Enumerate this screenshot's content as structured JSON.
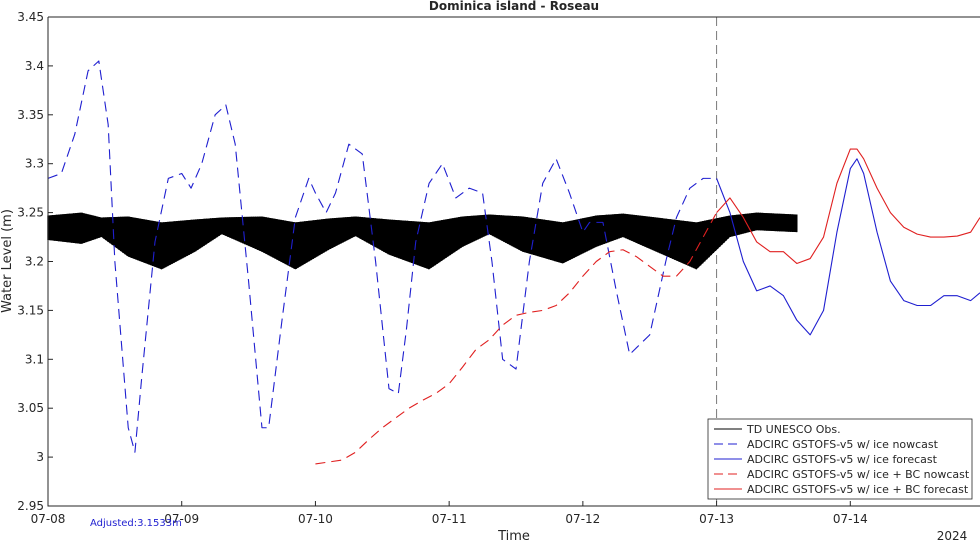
{
  "chart_data": {
    "type": "line",
    "title": "Dominica island - Roseau",
    "xlabel": "Time",
    "ylabel": "Water Level (m)",
    "year_label": "2024",
    "adjusted_label": "Adjusted:3.1533m",
    "xlim": [
      0,
      6.97
    ],
    "ylim": [
      2.95,
      3.45
    ],
    "x_ticks": [
      {
        "x": 0,
        "label": "07-08"
      },
      {
        "x": 1,
        "label": "07-09"
      },
      {
        "x": 2,
        "label": "07-10"
      },
      {
        "x": 3,
        "label": "07-11"
      },
      {
        "x": 4,
        "label": "07-12"
      },
      {
        "x": 5,
        "label": "07-13"
      },
      {
        "x": 6,
        "label": "07-14"
      }
    ],
    "y_ticks": [
      2.95,
      3,
      3.05,
      3.1,
      3.15,
      3.2,
      3.25,
      3.3,
      3.35,
      3.4,
      3.45
    ],
    "y_tick_labels": [
      "2.95",
      "3",
      "3.05",
      "3.1",
      "3.15",
      "3.2",
      "3.25",
      "3.3",
      "3.35",
      "3.4",
      "3.45"
    ],
    "nowcast_divider_x": 5,
    "legend_position": "bottom-right",
    "colors": {
      "obs": "#000000",
      "gstofs": "#1f1fd0",
      "gstofs_bc": "#e02020"
    },
    "obs_band": {
      "name": "TD UNESCO Obs.",
      "x": [
        0,
        0.25,
        0.4,
        0.6,
        0.85,
        1.1,
        1.3,
        1.6,
        1.85,
        2.1,
        2.3,
        2.55,
        2.85,
        3.1,
        3.3,
        3.55,
        3.85,
        4.1,
        4.3,
        4.55,
        4.85,
        5.1,
        5.3,
        5.6
      ],
      "upper": [
        3.247,
        3.25,
        3.245,
        3.246,
        3.24,
        3.243,
        3.245,
        3.246,
        3.24,
        3.244,
        3.246,
        3.243,
        3.24,
        3.246,
        3.248,
        3.246,
        3.24,
        3.247,
        3.249,
        3.245,
        3.24,
        3.247,
        3.25,
        3.248
      ],
      "lower": [
        3.222,
        3.218,
        3.225,
        3.205,
        3.192,
        3.21,
        3.228,
        3.21,
        3.192,
        3.212,
        3.226,
        3.207,
        3.192,
        3.215,
        3.228,
        3.21,
        3.198,
        3.215,
        3.225,
        3.21,
        3.192,
        3.225,
        3.232,
        3.23
      ]
    },
    "series": [
      {
        "name": "ADCIRC GSTOFS-v5 w/ ice nowcast",
        "style": "dashed",
        "color": "#1f1fd0",
        "x": [
          0,
          0.1,
          0.2,
          0.3,
          0.38,
          0.45,
          0.5,
          0.6,
          0.65,
          0.7,
          0.8,
          0.9,
          1.0,
          1.07,
          1.15,
          1.25,
          1.33,
          1.4,
          1.5,
          1.6,
          1.65,
          1.75,
          1.85,
          1.95,
          2.0,
          2.08,
          2.15,
          2.25,
          2.35,
          2.45,
          2.55,
          2.62,
          2.68,
          2.75,
          2.85,
          2.95,
          3.05,
          3.15,
          3.25,
          3.32,
          3.4,
          3.5,
          3.6,
          3.7,
          3.8,
          3.9,
          4.0,
          4.05,
          4.15,
          4.25,
          4.35,
          4.5,
          4.62,
          4.7,
          4.8,
          4.9,
          5.0
        ],
        "y": [
          3.285,
          3.29,
          3.33,
          3.395,
          3.405,
          3.34,
          3.2,
          3.03,
          3.005,
          3.08,
          3.22,
          3.285,
          3.29,
          3.275,
          3.3,
          3.35,
          3.36,
          3.32,
          3.18,
          3.03,
          3.03,
          3.14,
          3.245,
          3.285,
          3.27,
          3.25,
          3.27,
          3.32,
          3.31,
          3.2,
          3.07,
          3.065,
          3.13,
          3.22,
          3.28,
          3.3,
          3.265,
          3.275,
          3.27,
          3.2,
          3.1,
          3.09,
          3.2,
          3.28,
          3.305,
          3.27,
          3.23,
          3.24,
          3.24,
          3.17,
          3.105,
          3.125,
          3.2,
          3.245,
          3.275,
          3.285,
          3.285
        ]
      },
      {
        "name": "ADCIRC GSTOFS-v5 w/ ice forecast",
        "style": "solid",
        "color": "#1f1fd0",
        "x": [
          5.0,
          5.1,
          5.2,
          5.3,
          5.4,
          5.5,
          5.6,
          5.7,
          5.8,
          5.9,
          6.0,
          6.05,
          6.1,
          6.2,
          6.3,
          6.4,
          6.5,
          6.6,
          6.7,
          6.8,
          6.9,
          6.97
        ],
        "y": [
          3.285,
          3.25,
          3.2,
          3.17,
          3.175,
          3.165,
          3.14,
          3.125,
          3.15,
          3.23,
          3.295,
          3.305,
          3.29,
          3.23,
          3.18,
          3.16,
          3.155,
          3.155,
          3.165,
          3.165,
          3.16,
          3.168
        ]
      },
      {
        "name": "ADCIRC GSTOFS-v5 w/ ice + BC nowcast",
        "style": "dashed",
        "color": "#e02020",
        "x": [
          2.0,
          2.1,
          2.2,
          2.3,
          2.4,
          2.5,
          2.6,
          2.7,
          2.8,
          2.9,
          3.0,
          3.1,
          3.2,
          3.3,
          3.4,
          3.5,
          3.6,
          3.7,
          3.8,
          3.9,
          4.0,
          4.1,
          4.2,
          4.3,
          4.4,
          4.5,
          4.6,
          4.7,
          4.8,
          4.9,
          5.0
        ],
        "y": [
          2.993,
          2.995,
          2.997,
          3.005,
          3.018,
          3.03,
          3.04,
          3.05,
          3.058,
          3.065,
          3.075,
          3.092,
          3.11,
          3.12,
          3.135,
          3.145,
          3.148,
          3.15,
          3.155,
          3.168,
          3.185,
          3.2,
          3.21,
          3.212,
          3.205,
          3.195,
          3.185,
          3.185,
          3.2,
          3.225,
          3.25
        ]
      },
      {
        "name": "ADCIRC GSTOFS-v5 w/ ice + BC forecast",
        "style": "solid",
        "color": "#e02020",
        "x": [
          5.0,
          5.1,
          5.2,
          5.3,
          5.4,
          5.5,
          5.6,
          5.7,
          5.8,
          5.9,
          6.0,
          6.05,
          6.1,
          6.2,
          6.3,
          6.4,
          6.5,
          6.6,
          6.7,
          6.8,
          6.9,
          6.97
        ],
        "y": [
          3.25,
          3.265,
          3.245,
          3.22,
          3.21,
          3.21,
          3.198,
          3.203,
          3.225,
          3.28,
          3.315,
          3.315,
          3.305,
          3.275,
          3.25,
          3.235,
          3.228,
          3.225,
          3.225,
          3.226,
          3.23,
          3.245
        ]
      }
    ]
  }
}
